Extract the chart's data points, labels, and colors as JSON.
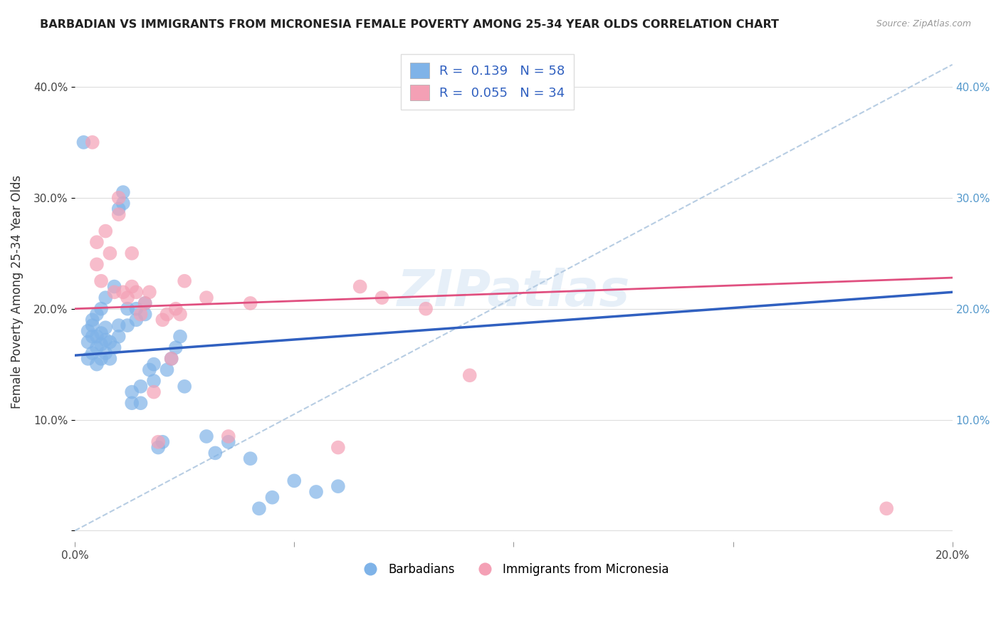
{
  "title": "BARBADIAN VS IMMIGRANTS FROM MICRONESIA FEMALE POVERTY AMONG 25-34 YEAR OLDS CORRELATION CHART",
  "source": "Source: ZipAtlas.com",
  "ylabel": "Female Poverty Among 25-34 Year Olds",
  "xlim": [
    0.0,
    0.2
  ],
  "ylim": [
    -0.01,
    0.44
  ],
  "xtick_positions": [
    0.0,
    0.05,
    0.1,
    0.15,
    0.2
  ],
  "xtick_labels": [
    "0.0%",
    "",
    "",
    "",
    "20.0%"
  ],
  "ytick_positions": [
    0.0,
    0.1,
    0.2,
    0.3,
    0.4
  ],
  "ytick_labels_left": [
    "",
    "10.0%",
    "20.0%",
    "30.0%",
    "40.0%"
  ],
  "ytick_labels_right": [
    "",
    "10.0%",
    "20.0%",
    "30.0%",
    "40.0%"
  ],
  "blue_color": "#7fb3e8",
  "pink_color": "#f4a0b5",
  "blue_line_color": "#3060c0",
  "pink_line_color": "#e05080",
  "dashed_line_color": "#b0c8e0",
  "legend_label_1": "R =  0.139   N = 58",
  "legend_label_2": "R =  0.055   N = 34",
  "legend_text_color": "#3060c0",
  "watermark": "ZIPatlas",
  "blue_scatter_x": [
    0.002,
    0.003,
    0.003,
    0.003,
    0.004,
    0.004,
    0.004,
    0.004,
    0.005,
    0.005,
    0.005,
    0.005,
    0.006,
    0.006,
    0.006,
    0.006,
    0.007,
    0.007,
    0.007,
    0.007,
    0.008,
    0.008,
    0.009,
    0.009,
    0.01,
    0.01,
    0.01,
    0.011,
    0.011,
    0.012,
    0.012,
    0.013,
    0.013,
    0.014,
    0.014,
    0.015,
    0.015,
    0.016,
    0.016,
    0.017,
    0.018,
    0.018,
    0.019,
    0.02,
    0.021,
    0.022,
    0.023,
    0.024,
    0.025,
    0.03,
    0.032,
    0.035,
    0.04,
    0.042,
    0.045,
    0.05,
    0.055,
    0.06
  ],
  "blue_scatter_y": [
    0.35,
    0.155,
    0.17,
    0.18,
    0.16,
    0.175,
    0.185,
    0.19,
    0.15,
    0.165,
    0.175,
    0.195,
    0.155,
    0.168,
    0.178,
    0.2,
    0.16,
    0.172,
    0.183,
    0.21,
    0.155,
    0.17,
    0.165,
    0.22,
    0.175,
    0.185,
    0.29,
    0.295,
    0.305,
    0.185,
    0.2,
    0.115,
    0.125,
    0.19,
    0.2,
    0.115,
    0.13,
    0.195,
    0.205,
    0.145,
    0.135,
    0.15,
    0.075,
    0.08,
    0.145,
    0.155,
    0.165,
    0.175,
    0.13,
    0.085,
    0.07,
    0.08,
    0.065,
    0.02,
    0.03,
    0.045,
    0.035,
    0.04
  ],
  "pink_scatter_x": [
    0.004,
    0.005,
    0.005,
    0.006,
    0.007,
    0.008,
    0.009,
    0.01,
    0.01,
    0.011,
    0.012,
    0.013,
    0.013,
    0.014,
    0.015,
    0.016,
    0.017,
    0.018,
    0.019,
    0.02,
    0.021,
    0.022,
    0.023,
    0.024,
    0.025,
    0.03,
    0.035,
    0.04,
    0.06,
    0.065,
    0.07,
    0.08,
    0.09,
    0.185
  ],
  "pink_scatter_y": [
    0.35,
    0.24,
    0.26,
    0.225,
    0.27,
    0.25,
    0.215,
    0.285,
    0.3,
    0.215,
    0.21,
    0.22,
    0.25,
    0.215,
    0.195,
    0.205,
    0.215,
    0.125,
    0.08,
    0.19,
    0.195,
    0.155,
    0.2,
    0.195,
    0.225,
    0.21,
    0.085,
    0.205,
    0.075,
    0.22,
    0.21,
    0.2,
    0.14,
    0.02
  ],
  "blue_trendline_x": [
    0.0,
    0.2
  ],
  "blue_trendline_y": [
    0.158,
    0.215
  ],
  "pink_trendline_x": [
    0.0,
    0.2
  ],
  "pink_trendline_y": [
    0.2,
    0.228
  ],
  "dashed_line_x": [
    0.0,
    0.2
  ],
  "dashed_line_y": [
    0.0,
    0.42
  ]
}
